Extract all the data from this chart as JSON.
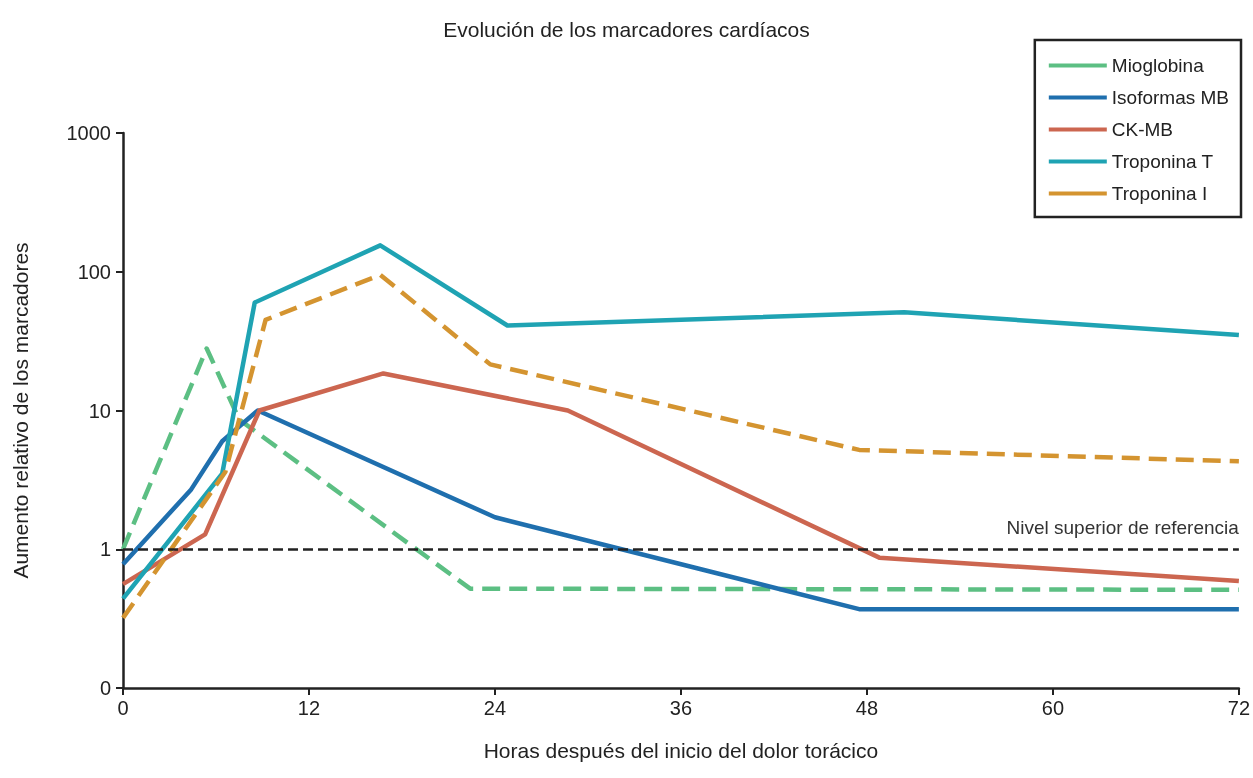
{
  "chart_data": {
    "type": "line",
    "title": "Evolución de los marcadores cardíacos",
    "xlabel": "Horas después del inicio del dolor torácico",
    "ylabel": "Aumento relativo de los marcadores",
    "log": "y",
    "xlim": [
      0,
      72
    ],
    "xticks": [
      0,
      12,
      24,
      36,
      48,
      60,
      72
    ],
    "ylim": [
      0.1,
      1000
    ],
    "yticks": [
      {
        "value": 0.1,
        "label": "0"
      },
      1,
      10,
      100,
      1000
    ],
    "grid": false,
    "legend": "top right",
    "marker": "none",
    "ref_lines": [
      {
        "axis": "y",
        "value": 1,
        "label": "Nivel superior de referencia",
        "color": "#222222",
        "line_style": "dashed"
      }
    ],
    "series": [
      {
        "name": "Mioglobina",
        "color": "#5cbf83",
        "line_style": "dashed",
        "x": [
          0,
          5.4,
          7.5,
          22.4,
          72
        ],
        "values": [
          1.0,
          28,
          8.6,
          0.52,
          0.51
        ]
      },
      {
        "name": "Isoformas MB",
        "color": "#1f6fae",
        "line_style": "solid",
        "x": [
          0,
          4.4,
          6.4,
          8.7,
          24,
          47.5,
          72
        ],
        "values": [
          0.78,
          2.7,
          6.0,
          10,
          1.7,
          0.37,
          0.37
        ]
      },
      {
        "name": "CK-MB",
        "color": "#cc6650",
        "line_style": "solid",
        "x": [
          0,
          5.3,
          8.8,
          16.8,
          28.7,
          48.8,
          72
        ],
        "values": [
          0.56,
          1.28,
          10,
          18.5,
          10,
          0.87,
          0.59
        ]
      },
      {
        "name": "Troponina T",
        "color": "#1fa3b3",
        "line_style": "solid",
        "x": [
          0,
          6.4,
          8.5,
          16.6,
          24.8,
          50.4,
          72
        ],
        "values": [
          0.44,
          3.5,
          60,
          155,
          41,
          51,
          35
        ]
      },
      {
        "name": "Troponina I",
        "color": "#d49430",
        "line_style": "dashed",
        "x": [
          0,
          6.6,
          9.2,
          16.6,
          23.7,
          47.5,
          72
        ],
        "values": [
          0.32,
          3.6,
          45,
          95,
          21.5,
          5.2,
          4.3
        ]
      }
    ]
  }
}
